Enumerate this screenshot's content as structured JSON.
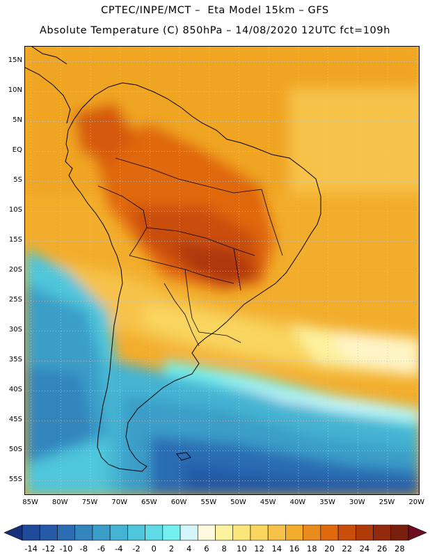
{
  "header": {
    "line1": "CPTEC/INPE/MCT –  Eta Model 15km – GFS",
    "line2": "Absolute Temperature (C) 850hPa – 14/08/2020 12UTC fct=109h"
  },
  "map": {
    "lon_range": [
      -86,
      -19.5
    ],
    "lat_range": [
      -57.5,
      17.5
    ],
    "lat_ticks": [
      {
        "value": 15,
        "label": "15N"
      },
      {
        "value": 10,
        "label": "10N"
      },
      {
        "value": 5,
        "label": "5N"
      },
      {
        "value": 0,
        "label": "EQ"
      },
      {
        "value": -5,
        "label": "5S"
      },
      {
        "value": -10,
        "label": "10S"
      },
      {
        "value": -15,
        "label": "15S"
      },
      {
        "value": -20,
        "label": "20S"
      },
      {
        "value": -25,
        "label": "25S"
      },
      {
        "value": -30,
        "label": "30S"
      },
      {
        "value": -35,
        "label": "35S"
      },
      {
        "value": -40,
        "label": "40S"
      },
      {
        "value": -45,
        "label": "45S"
      },
      {
        "value": -50,
        "label": "50S"
      },
      {
        "value": -55,
        "label": "55S"
      }
    ],
    "lon_ticks": [
      {
        "value": -85,
        "label": "85W"
      },
      {
        "value": -80,
        "label": "80W"
      },
      {
        "value": -75,
        "label": "75W"
      },
      {
        "value": -70,
        "label": "70W"
      },
      {
        "value": -65,
        "label": "65W"
      },
      {
        "value": -60,
        "label": "60W"
      },
      {
        "value": -55,
        "label": "55W"
      },
      {
        "value": -50,
        "label": "50W"
      },
      {
        "value": -45,
        "label": "45W"
      },
      {
        "value": -40,
        "label": "40W"
      },
      {
        "value": -35,
        "label": "35W"
      },
      {
        "value": -30,
        "label": "30W"
      },
      {
        "value": -25,
        "label": "25W"
      },
      {
        "value": -20,
        "label": "20W"
      }
    ],
    "gridlines": "dotted"
  },
  "colorbar": {
    "labels": [
      "-14",
      "-12",
      "-10",
      "-8",
      "-6",
      "-4",
      "-2",
      "0",
      "2",
      "4",
      "6",
      "8",
      "10",
      "12",
      "14",
      "16",
      "18",
      "20",
      "22",
      "24",
      "26",
      "28"
    ],
    "colors": [
      "#1f4b98",
      "#245aa6",
      "#2b6cb2",
      "#3385bd",
      "#3b9ec8",
      "#44b4d2",
      "#4fc6dc",
      "#5edbe6",
      "#74f0f0",
      "#d4f6fb",
      "#fff9e0",
      "#fdf29e",
      "#fbe67c",
      "#f9d660",
      "#f6c24a",
      "#f2ad2c",
      "#e98c1d",
      "#e0680f",
      "#c94e0b",
      "#b0390a",
      "#922a0b",
      "#7a1f0e"
    ],
    "under_color": "#17307a",
    "over_color": "#6e0d22"
  }
}
